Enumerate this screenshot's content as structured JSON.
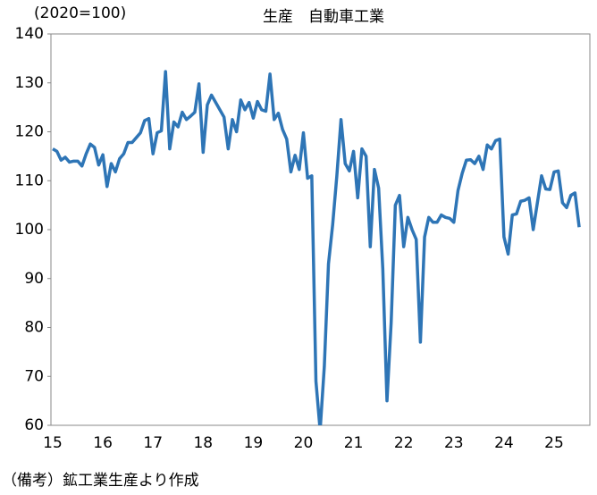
{
  "chart_data": {
    "type": "line",
    "title": "生産　自動車工業",
    "y_label": "(2020=100)",
    "note": "（備考）鉱工業生産より作成",
    "categories": [
      "15",
      null,
      null,
      null,
      null,
      null,
      null,
      null,
      null,
      null,
      null,
      null,
      "16",
      null,
      null,
      null,
      null,
      null,
      null,
      null,
      null,
      null,
      null,
      null,
      "17",
      null,
      null,
      null,
      null,
      null,
      null,
      null,
      null,
      null,
      null,
      null,
      "18",
      null,
      null,
      null,
      null,
      null,
      null,
      null,
      null,
      null,
      null,
      null,
      "19",
      null,
      null,
      null,
      null,
      null,
      null,
      null,
      null,
      null,
      null,
      null,
      "20",
      null,
      null,
      null,
      null,
      null,
      null,
      null,
      null,
      null,
      null,
      null,
      "21",
      null,
      null,
      null,
      null,
      null,
      null,
      null,
      null,
      null,
      null,
      null,
      "22",
      null,
      null,
      null,
      null,
      null,
      null,
      null,
      null,
      null,
      null,
      null,
      "23",
      null,
      null,
      null,
      null,
      null,
      null,
      null,
      null,
      null,
      null,
      null,
      "24",
      null,
      null,
      null,
      null,
      null,
      null,
      null,
      null,
      null,
      null,
      null,
      "25",
      null,
      null,
      null,
      null,
      null,
      null
    ],
    "series": [
      {
        "name": "生産",
        "color": "#2e75b6",
        "values": [
          116.5,
          116,
          114.2,
          114.8,
          113.8,
          114,
          114,
          113,
          115.5,
          117.5,
          116.8,
          113.2,
          115.3,
          108.8,
          113.5,
          111.8,
          114.5,
          115.5,
          117.8,
          117.8,
          118.8,
          119.8,
          122.3,
          122.7,
          115.5,
          119.8,
          120.2,
          132.3,
          116.5,
          122,
          121,
          124,
          122.5,
          123.2,
          124,
          129.8,
          115.8,
          125.5,
          127.5,
          126,
          124.5,
          123,
          116.5,
          122.5,
          120,
          126.5,
          124.5,
          126,
          122.8,
          126.2,
          124.5,
          124.2,
          131.8,
          122.5,
          123.8,
          120.5,
          118.5,
          111.8,
          115.2,
          112.3,
          119.8,
          110.5,
          111,
          69,
          59,
          72,
          93,
          101,
          111,
          122.5,
          113.5,
          112,
          116,
          106.5,
          116.5,
          115,
          96.5,
          112.3,
          108.5,
          92,
          65,
          81,
          105,
          107,
          96.5,
          102.5,
          100,
          98,
          77,
          98.5,
          102.5,
          101.5,
          101.5,
          103,
          102.5,
          102.3,
          101.5,
          108,
          111.5,
          114.2,
          114.3,
          113.5,
          115,
          112.3,
          117.3,
          116.5,
          118.2,
          118.5,
          98.5,
          95,
          103,
          103.2,
          105.8,
          106,
          106.5,
          100,
          105.5,
          111,
          108.3,
          108.2,
          111.8,
          112,
          105.5,
          104.5,
          107,
          107.5,
          100.5
        ]
      }
    ],
    "ylim": [
      60,
      140
    ],
    "yticks": [
      60,
      70,
      80,
      90,
      100,
      110,
      120,
      130,
      140
    ]
  }
}
